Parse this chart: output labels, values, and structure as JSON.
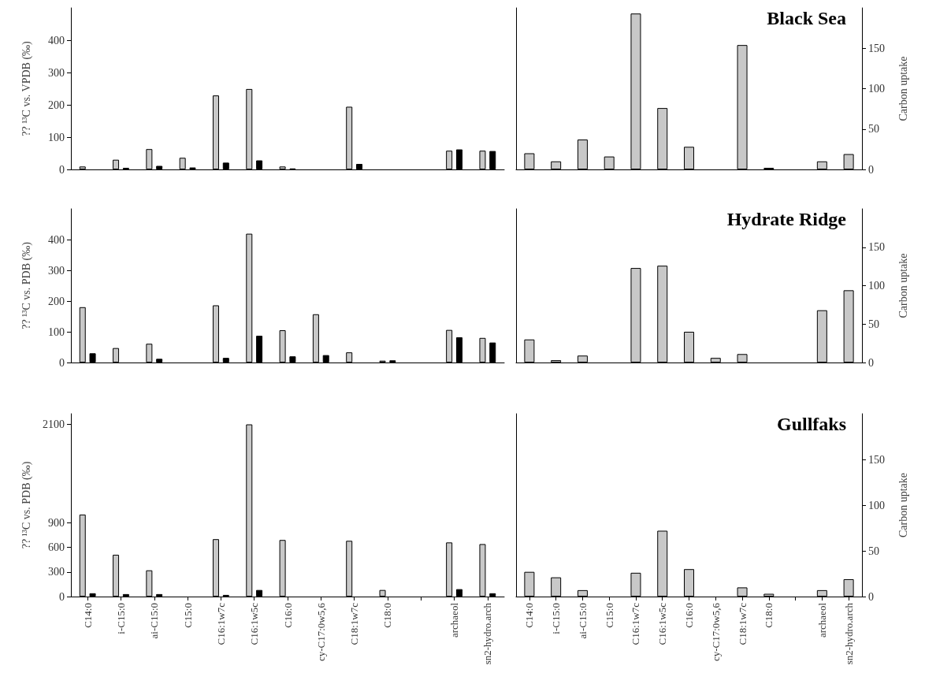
{
  "chart_data": [
    {
      "type": "bar",
      "categories": [
        null,
        null,
        null,
        null,
        null,
        null,
        null,
        null,
        null,
        null,
        null,
        null,
        null
      ],
      "ylabel": "?? ¹³C vs. VPDB (‰)",
      "ylim": [
        0,
        500
      ],
      "yticks": [
        0,
        100,
        200,
        300,
        400
      ],
      "tick_labels": "y",
      "series": [
        {
          "color": "#c8c8c8",
          "values": [
            9,
            30,
            63,
            36,
            229,
            249,
            9,
            null,
            194,
            null,
            null,
            58,
            58
          ]
        },
        {
          "color": "#000000",
          "values": [
            null,
            5,
            11,
            6,
            21,
            28,
            3,
            null,
            17,
            null,
            null,
            62,
            57
          ]
        }
      ]
    },
    {
      "type": "bar",
      "title": "Black Sea",
      "categories": [
        null,
        null,
        null,
        null,
        null,
        null,
        null,
        null,
        null,
        null,
        null,
        null,
        null
      ],
      "y2label": "Carbon uptake",
      "y2lim": [
        0,
        200
      ],
      "y2ticks": [
        0,
        50,
        100,
        150
      ],
      "tick_labels": "y2",
      "series": [
        {
          "color": "#c8c8c8",
          "axis": "y2",
          "values": [
            20,
            10,
            37,
            16,
            193,
            76,
            28,
            null,
            154,
            2,
            null,
            10,
            19
          ]
        }
      ]
    },
    {
      "type": "bar",
      "categories": [
        null,
        null,
        null,
        null,
        null,
        null,
        null,
        null,
        null,
        null,
        null,
        null,
        null
      ],
      "ylabel": "?? ¹³C vs. PDB (‰)",
      "ylim": [
        0,
        500
      ],
      "yticks": [
        0,
        100,
        200,
        300,
        400
      ],
      "tick_labels": "y",
      "series": [
        {
          "color": "#c8c8c8",
          "values": [
            180,
            47,
            61,
            null,
            186,
            419,
            105,
            157,
            33,
            6,
            null,
            106,
            80
          ]
        },
        {
          "color": "#000000",
          "values": [
            30,
            null,
            12,
            null,
            15,
            87,
            20,
            24,
            null,
            7,
            null,
            82,
            65
          ]
        }
      ]
    },
    {
      "type": "bar",
      "title": "Hydrate Ridge",
      "categories": [
        null,
        null,
        null,
        null,
        null,
        null,
        null,
        null,
        null,
        null,
        null,
        null,
        null
      ],
      "y2label": "Carbon uptake",
      "y2lim": [
        0,
        200
      ],
      "y2ticks": [
        0,
        50,
        100,
        150
      ],
      "tick_labels": "y2",
      "series": [
        {
          "color": "#c8c8c8",
          "axis": "y2",
          "values": [
            30,
            3,
            9,
            null,
            123,
            126,
            40,
            6,
            11,
            null,
            null,
            68,
            94
          ]
        }
      ]
    },
    {
      "type": "bar",
      "categories": [
        "C14:0",
        "i-C15:0",
        "ai-C15:0",
        "C15:0",
        "C16:1w7c",
        "C16:1w5c",
        "C16:0",
        "cy-C17:0w5,6",
        "C18:1w7c",
        "C18:0",
        null,
        "archaeol",
        "sn2-hydro.arch"
      ],
      "ylabel": "?? ¹³C vs. PDB (‰)",
      "ylim": [
        0,
        2230
      ],
      "yticks": [
        0,
        300,
        600,
        900,
        2100
      ],
      "series": [
        {
          "color": "#c8c8c8",
          "values": [
            1000,
            510,
            320,
            null,
            700,
            2100,
            690,
            null,
            680,
            80,
            null,
            660,
            640
          ]
        },
        {
          "color": "#000000",
          "values": [
            40,
            30,
            30,
            null,
            20,
            80,
            null,
            null,
            null,
            null,
            null,
            90,
            40
          ]
        }
      ]
    },
    {
      "type": "bar",
      "title": "Gullfaks",
      "categories": [
        "C14:0",
        "i-C15:0",
        "ai-C15:0",
        "C15:0",
        "C16:1w7c",
        "C16:1w5c",
        "C16:0",
        "cy-C17:0w5,6",
        "C18:1w7c",
        "C18:0",
        null,
        "archaeol",
        "sn2-hydro.arch"
      ],
      "y2label": "Carbon uptake",
      "y2lim": [
        0,
        200
      ],
      "y2ticks": [
        0,
        50,
        100,
        150
      ],
      "series": [
        {
          "color": "#c8c8c8",
          "axis": "y2",
          "values": [
            27,
            21,
            7,
            null,
            26,
            72,
            30,
            null,
            10,
            3,
            null,
            7,
            19
          ]
        }
      ]
    }
  ]
}
